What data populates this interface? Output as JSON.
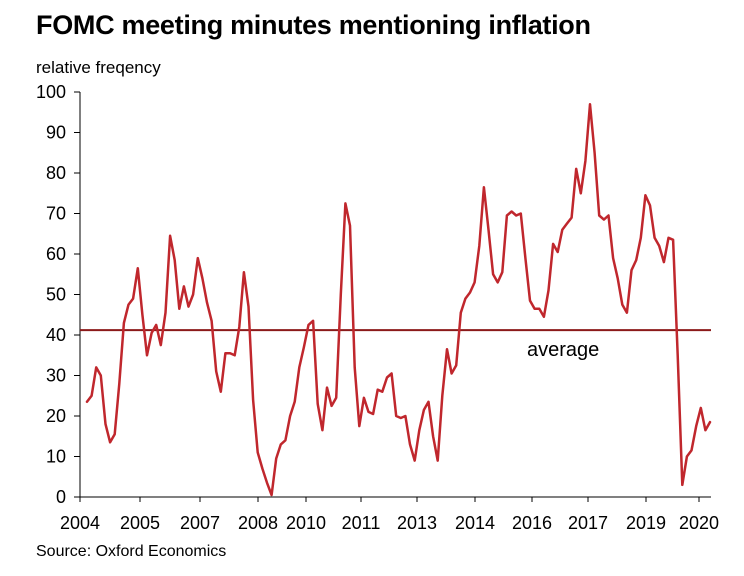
{
  "chart_data": {
    "type": "line",
    "title": "FOMC meeting minutes mentioning inflation",
    "ylabel": "relative freqency",
    "xlabel": "",
    "source": "Source: Oxford Economics",
    "ylim": [
      0,
      100
    ],
    "yticks": [
      0,
      10,
      20,
      30,
      40,
      50,
      60,
      70,
      80,
      90,
      100
    ],
    "xtick_labels": [
      "2004",
      "2005",
      "2007",
      "2008",
      "2010",
      "2011",
      "2013",
      "2014",
      "2016",
      "2017",
      "2019",
      "2020"
    ],
    "series": [
      {
        "name": "relative frequency",
        "color": "#c0272d",
        "values": [
          23.5,
          25,
          32,
          30,
          18,
          13.5,
          15.5,
          28,
          43,
          47.5,
          49,
          56.5,
          45,
          35,
          40.5,
          42.5,
          37.5,
          45.5,
          64.5,
          58.5,
          46.5,
          52,
          47,
          50,
          59,
          54,
          48,
          43.5,
          31,
          26,
          35.5,
          35.5,
          35,
          42,
          55.5,
          47,
          24,
          11,
          7,
          3.5,
          0.5,
          9.5,
          13,
          14,
          20,
          23.5,
          32,
          37,
          42.5,
          43.5,
          23,
          16.5,
          27,
          22.5,
          24.5,
          50,
          72.5,
          67,
          32,
          17.5,
          24.5,
          21,
          20.5,
          26.5,
          26,
          29.5,
          30.5,
          20,
          19.5,
          20,
          13,
          9,
          16.5,
          21.5,
          23.5,
          15,
          9,
          25,
          36.5,
          30.5,
          32.5,
          45.5,
          49,
          50.5,
          53,
          62,
          76.5,
          66,
          55,
          53,
          55.5,
          69.5,
          70.5,
          69.5,
          70,
          59,
          48.5,
          46.5,
          46.5,
          44.5,
          51,
          62.5,
          60.5,
          66,
          67.5,
          69,
          81,
          75,
          83,
          97,
          85,
          69.5,
          68.5,
          69.5,
          59,
          54,
          47.5,
          45.5,
          56,
          58.5,
          64,
          74.5,
          72,
          64,
          62,
          58,
          64,
          63.5,
          35,
          3,
          10,
          11.5,
          17.5,
          22,
          16.5,
          18.5
        ]
      }
    ],
    "reference_line": {
      "label": "average",
      "value": 41.2,
      "color": "#8b1a1a"
    }
  }
}
